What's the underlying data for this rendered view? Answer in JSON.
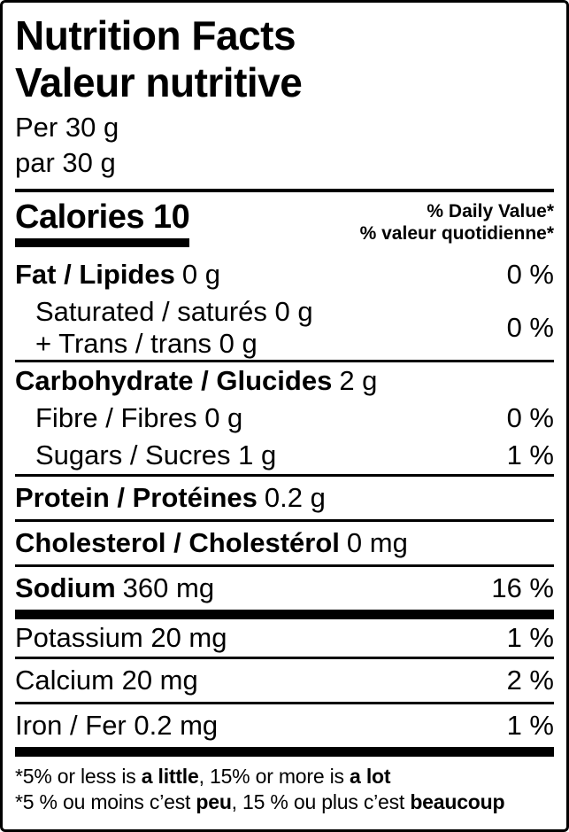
{
  "header": {
    "title_en": "Nutrition Facts",
    "title_fr": "Valeur nutritive",
    "serving_en": "Per 30 g",
    "serving_fr": "par 30 g"
  },
  "calories": {
    "label": "Calories 10",
    "dv_header_en": "% Daily Value*",
    "dv_header_fr": "% valeur quotidienne*"
  },
  "nutrients": {
    "fat": {
      "name": "Fat / Lipides",
      "amount": "0 g",
      "dv": "0 %"
    },
    "sat_trans": {
      "line1": "Saturated / saturés 0 g",
      "line2": "+ Trans / trans 0 g",
      "dv": "0 %"
    },
    "carbohydrate": {
      "name": "Carbohydrate / Glucides",
      "amount": "2 g"
    },
    "fibre": {
      "name": "Fibre / Fibres 0 g",
      "dv": "0 %"
    },
    "sugars": {
      "name": "Sugars / Sucres 1 g",
      "dv": "1 %"
    },
    "protein": {
      "name": "Protein / Protéines",
      "amount": "0.2 g"
    },
    "cholesterol": {
      "name": "Cholesterol / Cholestérol",
      "amount": "0 mg"
    },
    "sodium": {
      "name": "Sodium",
      "amount": "360 mg",
      "dv": "16 %"
    },
    "potassium": {
      "name": "Potassium 20 mg",
      "dv": "1 %"
    },
    "calcium": {
      "name": "Calcium 20 mg",
      "dv": "2 %"
    },
    "iron": {
      "name": "Iron / Fer 0.2 mg",
      "dv": "1 %"
    }
  },
  "footnotes": {
    "en": {
      "pre1": "*5% or less is ",
      "bold1": "a little",
      "mid": ", 15% or more is ",
      "bold2": "a lot"
    },
    "fr": {
      "pre1": "*5 % ou moins c’est ",
      "bold1": "peu",
      "mid": ", 15 % ou plus c’est ",
      "bold2": "beaucoup"
    }
  },
  "colors": {
    "text": "#000000",
    "background": "#ffffff",
    "border": "#000000"
  }
}
